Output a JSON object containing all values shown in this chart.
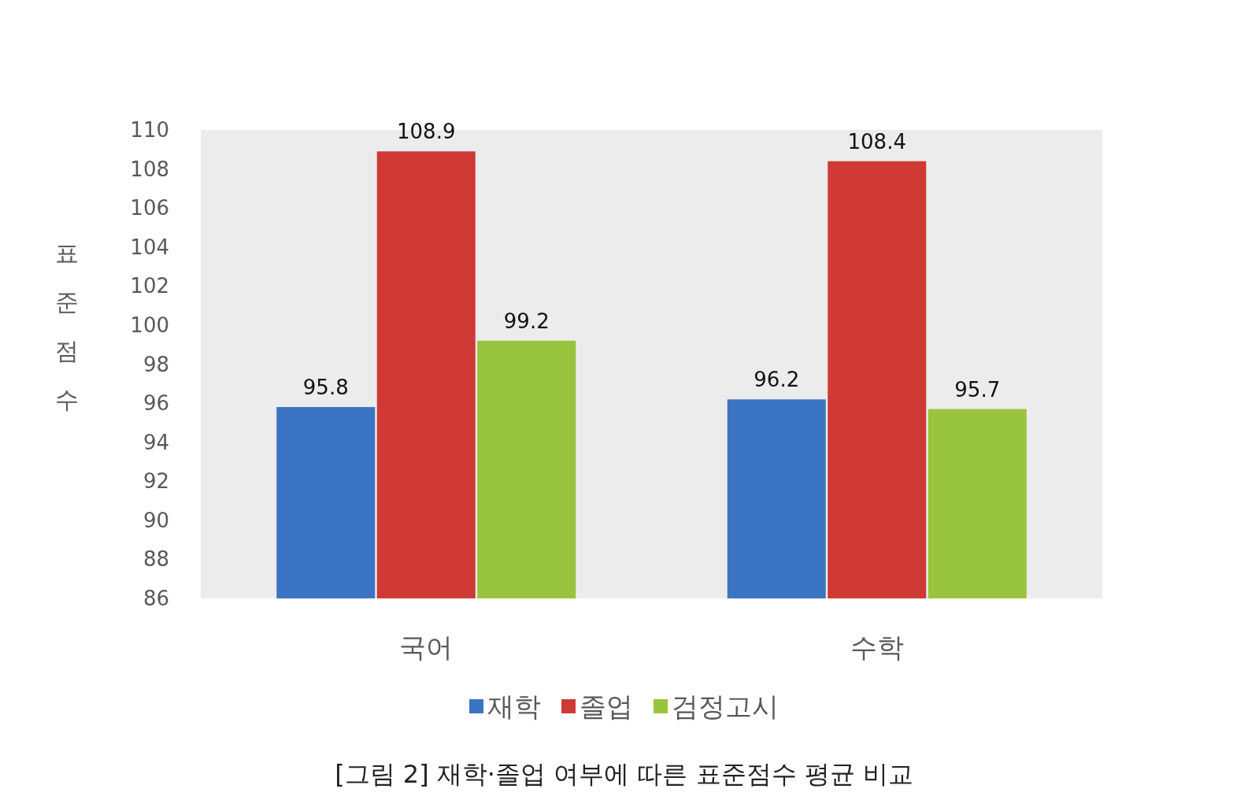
{
  "chart_data": {
    "type": "bar",
    "title": "[그림 2] 재학·졸업 여부에 따른 표준점수 평균 비교",
    "ylabel": "표준점수",
    "categories": [
      "국어",
      "수학"
    ],
    "series": [
      {
        "name": "재학",
        "color": "#3a74c2",
        "values": [
          95.8,
          96.2
        ]
      },
      {
        "name": "졸업",
        "color": "#cf3a35",
        "values": [
          108.9,
          108.4
        ]
      },
      {
        "name": "검정고시",
        "color": "#98c43e",
        "values": [
          99.2,
          95.7
        ]
      }
    ],
    "ylim": [
      86,
      110
    ],
    "yticks": [
      86,
      88,
      90,
      92,
      94,
      96,
      98,
      100,
      102,
      104,
      106,
      108,
      110
    ],
    "data_labels": true,
    "grid": false,
    "legend": "bottom"
  }
}
